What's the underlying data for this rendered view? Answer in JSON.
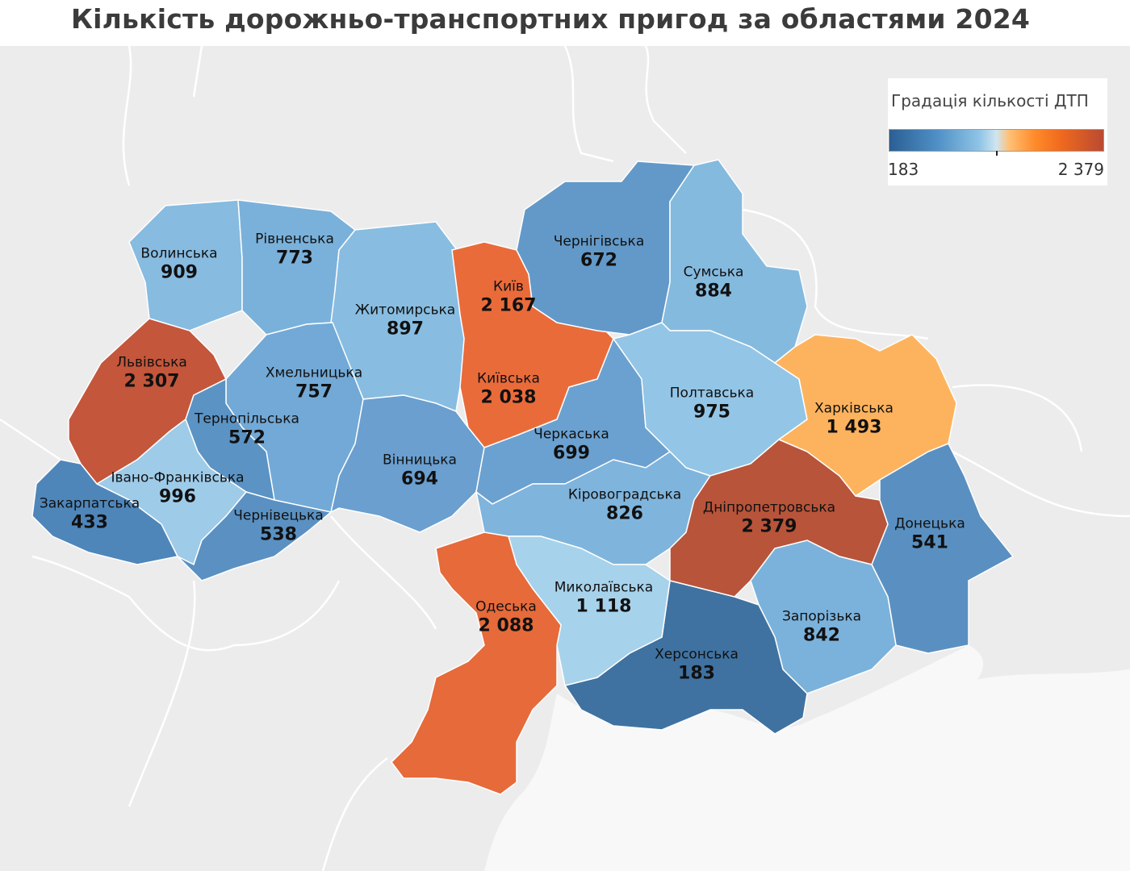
{
  "title": "Кількість дорожньо-транспортних пригод за областями 2024",
  "legend": {
    "title": "Градація кількості ДТП",
    "min": "183",
    "max": "2 379",
    "colors": [
      "#2a5f94",
      "#4e8fc5",
      "#8fc4e6",
      "#ffc074",
      "#f06a1e",
      "#b94a32"
    ]
  },
  "regions": [
    {
      "id": "volynska",
      "name": "Волинська",
      "value": "909"
    },
    {
      "id": "rivnenska",
      "name": "Рівненська",
      "value": "773"
    },
    {
      "id": "zhytomyrska",
      "name": "Житомирська",
      "value": "897"
    },
    {
      "id": "kyiv",
      "name": "Київ",
      "value": "2 167"
    },
    {
      "id": "chernihivska",
      "name": "Чернігівська",
      "value": "672"
    },
    {
      "id": "sumska",
      "name": "Сумська",
      "value": "884"
    },
    {
      "id": "lvivska",
      "name": "Львівська",
      "value": "2 307"
    },
    {
      "id": "khmelnytska",
      "name": "Хмельницька",
      "value": "757"
    },
    {
      "id": "ternopilska",
      "name": "Тернопільська",
      "value": "572"
    },
    {
      "id": "kyivska",
      "name": "Київська",
      "value": "2 038"
    },
    {
      "id": "poltavska",
      "name": "Полтавська",
      "value": "975"
    },
    {
      "id": "kharkivska",
      "name": "Харківська",
      "value": "1 493"
    },
    {
      "id": "cherkaska",
      "name": "Черкаська",
      "value": "699"
    },
    {
      "id": "ivano-frankivska",
      "name": "Івано-Франківська",
      "value": "996"
    },
    {
      "id": "vinnytska",
      "name": "Вінницька",
      "value": "694"
    },
    {
      "id": "zakarpatska",
      "name": "Закарпатська",
      "value": "433"
    },
    {
      "id": "chernivetska",
      "name": "Чернівецька",
      "value": "538"
    },
    {
      "id": "kirovohradska",
      "name": "Кіровоградська",
      "value": "826"
    },
    {
      "id": "dnipropetrovska",
      "name": "Дніпропетровська",
      "value": "2 379"
    },
    {
      "id": "donetska",
      "name": "Донецька",
      "value": "541"
    },
    {
      "id": "odeska",
      "name": "Одеська",
      "value": "2 088"
    },
    {
      "id": "mykolaivska",
      "name": "Миколаївська",
      "value": "1 118"
    },
    {
      "id": "zaporizka",
      "name": "Запорізька",
      "value": "842"
    },
    {
      "id": "khersonska",
      "name": "Херсонська",
      "value": "183"
    }
  ]
}
